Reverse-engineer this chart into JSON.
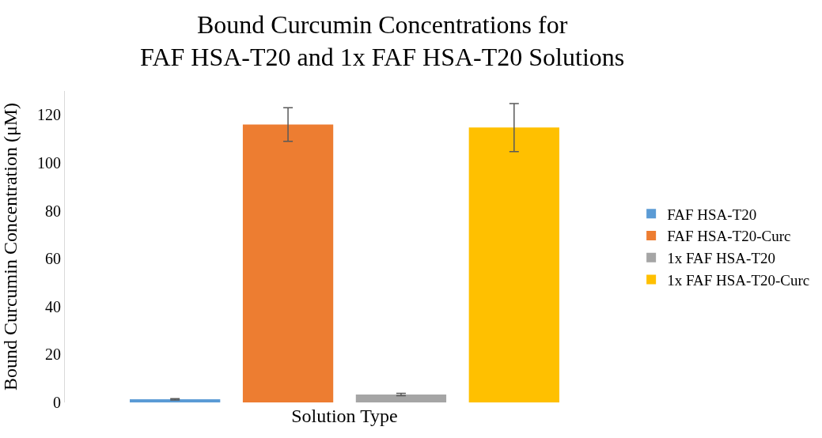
{
  "chart_data": {
    "type": "bar",
    "title": "Bound Curcumin Concentrations for\nFAF HSA-T20 and 1x FAF HSA-T20 Solutions",
    "xlabel": "Solution Type",
    "ylabel": "Bound Curcumin Concentration (μM)",
    "categories": [
      null
    ],
    "series": [
      {
        "name": "FAF HSA-T20",
        "color": "#5b9bd5",
        "values": [
          1.3
        ],
        "errors": [
          0.3
        ]
      },
      {
        "name": "FAF HSA-T20-Curc",
        "color": "#ed7d31",
        "values": [
          116
        ],
        "errors": [
          7
        ]
      },
      {
        "name": "1x FAF HSA-T20",
        "color": "#a5a5a5",
        "values": [
          3.3
        ],
        "errors": [
          0.5
        ]
      },
      {
        "name": "1x FAF HSA-T20-Curc",
        "color": "#ffc000",
        "values": [
          114.7
        ],
        "errors": [
          10
        ]
      }
    ],
    "ylim": [
      0,
      130
    ],
    "yticks": [
      0,
      20,
      40,
      60,
      80,
      100,
      120
    ],
    "legend": "right"
  }
}
